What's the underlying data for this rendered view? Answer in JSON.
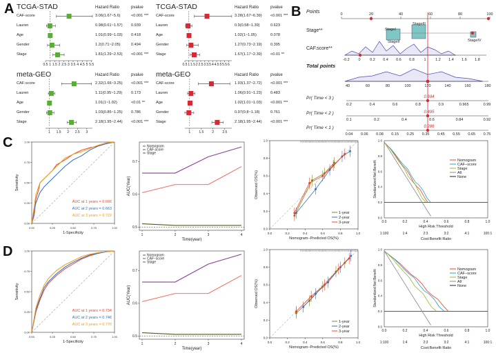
{
  "panel_labels": {
    "a": "A",
    "b": "B",
    "c": "C",
    "d": "D"
  },
  "forest_plots": [
    {
      "title": "TCGA-STAD",
      "col_hr": "Hazard Ratio",
      "col_p": "pvalue",
      "rows": [
        {
          "label": "CAF-score",
          "hr_text": "3.06(1.67~5.6)",
          "p_text": "<0.001 ***",
          "hr": 3.06,
          "lo": 1.67,
          "hi": 5.6
        },
        {
          "label": "Lauren",
          "hr_text": "0.98(0.61~1.57)",
          "p_text": "0.939",
          "hr": 0.98,
          "lo": 0.61,
          "hi": 1.57
        },
        {
          "label": "Age",
          "hr_text": "1.01(0.99~1.03)",
          "p_text": "0.418",
          "hr": 1.01,
          "lo": 0.99,
          "hi": 1.03
        },
        {
          "label": "Gender",
          "hr_text": "1.2(0.71~2.05)",
          "p_text": "0.494",
          "hr": 1.2,
          "lo": 0.71,
          "hi": 2.05
        },
        {
          "label": "Stage",
          "hr_text": "1.81(1.29~2.53)",
          "p_text": "<0.001 ***",
          "hr": 1.81,
          "lo": 1.29,
          "hi": 2.53
        }
      ],
      "ticks": [
        "0.5",
        "1",
        "1.5",
        "2",
        "2.5",
        "3",
        "3.5",
        "4",
        "4.5",
        "5",
        "5.5"
      ],
      "xlim": [
        0.5,
        5.6
      ],
      "color": "#5aab3c"
    },
    {
      "title": "TCGA-STAD",
      "col_hr": "Hazard Ratio",
      "col_p": "pvalue",
      "rows": [
        {
          "label": "CAF-score",
          "hr_text": "3.28(1.67~6.39)",
          "p_text": "<0.001 ***",
          "hr": 3.28,
          "lo": 1.67,
          "hi": 6.39
        },
        {
          "label": "Lauren",
          "hr_text": "0.9(0.58~1.39)",
          "p_text": "0.623",
          "hr": 0.9,
          "lo": 0.58,
          "hi": 1.39
        },
        {
          "label": "Age",
          "hr_text": "1.02(1~1.05)",
          "p_text": "0.078",
          "hr": 1.02,
          "lo": 1.0,
          "hi": 1.05
        },
        {
          "label": "Gender",
          "hr_text": "1.27(0.73~2.19)",
          "p_text": "0.395",
          "hr": 1.27,
          "lo": 0.73,
          "hi": 2.19
        },
        {
          "label": "Stage",
          "hr_text": "1.67(1.17~2.39)",
          "p_text": "<0.01 **",
          "hr": 1.67,
          "lo": 1.17,
          "hi": 2.39
        }
      ],
      "ticks": [
        "0.5",
        "1",
        "1.5",
        "2",
        "2.5",
        "3",
        "3.5",
        "4",
        "4.5",
        "5",
        "5.5",
        "6"
      ],
      "xlim": [
        0.5,
        6.4
      ],
      "color": "#d42a36"
    },
    {
      "title": "meta-GEO",
      "col_hr": "Hazard Ratio",
      "col_p": "pvalue",
      "rows": [
        {
          "label": "CAF-score",
          "hr_text": "2.32(1.66~3.25)",
          "p_text": "<0.001 ***",
          "hr": 2.32,
          "lo": 1.66,
          "hi": 3.25
        },
        {
          "label": "Lauren",
          "hr_text": "1.11(0.95~1.29)",
          "p_text": "0.173",
          "hr": 1.11,
          "lo": 0.95,
          "hi": 1.29
        },
        {
          "label": "Age",
          "hr_text": "1.01(1~1.02)",
          "p_text": "<0.01 **",
          "hr": 1.01,
          "lo": 1.0,
          "hi": 1.02
        },
        {
          "label": "Gender",
          "hr_text": "1.03(0.85~1.25)",
          "p_text": "0.786",
          "hr": 1.03,
          "lo": 0.85,
          "hi": 1.25
        },
        {
          "label": "Stage",
          "hr_text": "2.18(1.95~2.44)",
          "p_text": "<0.001 ***",
          "hr": 2.18,
          "lo": 1.95,
          "hi": 2.44
        }
      ],
      "ticks": [
        "1",
        "1.5",
        "2",
        "2.5",
        "3"
      ],
      "xlim": [
        0.8,
        3.3
      ],
      "color": "#5aab3c"
    },
    {
      "title": "meta-GEO",
      "col_hr": "Hazard Ratio",
      "col_p": "pvalue",
      "rows": [
        {
          "label": "CAF-score",
          "hr_text": "1.93(1.37~2.72)",
          "p_text": "<0.001 ***",
          "hr": 1.93,
          "lo": 1.37,
          "hi": 2.72
        },
        {
          "label": "Lauren",
          "hr_text": "1.06(0.91~1.23)",
          "p_text": "0.483",
          "hr": 1.06,
          "lo": 0.91,
          "hi": 1.23
        },
        {
          "label": "Age",
          "hr_text": "1.02(1.01~1.03)",
          "p_text": "<0.001 ***",
          "hr": 1.02,
          "lo": 1.01,
          "hi": 1.03
        },
        {
          "label": "Gender",
          "hr_text": "0.97(0.8~1.18)",
          "p_text": "0.761",
          "hr": 0.97,
          "lo": 0.8,
          "hi": 1.18
        },
        {
          "label": "Stage",
          "hr_text": "2.18(1.95~2.44)",
          "p_text": "<0.001 ***",
          "hr": 2.18,
          "lo": 1.95,
          "hi": 2.44
        }
      ],
      "ticks": [
        "1",
        "1.5",
        "2",
        "2.5"
      ],
      "xlim": [
        0.8,
        2.8
      ],
      "color": "#d42a36"
    }
  ],
  "nomogram": {
    "rows": [
      {
        "label": "Points",
        "ticks": [
          "0",
          "20",
          "40",
          "60",
          "80",
          "100"
        ]
      },
      {
        "label": "Stage**",
        "ticks": [
          "StageII",
          "StageI",
          "StageIII",
          "StageIV"
        ]
      },
      {
        "label": "CAF.score**",
        "ticks": [
          "-0.2",
          "0",
          "0.2",
          "0.4",
          "0.6",
          "0.8",
          "1",
          "1.2",
          "1.4",
          "1.6",
          "1.8"
        ]
      },
      {
        "label": "Total points",
        "ticks": [
          "40",
          "60",
          "80",
          "100",
          "120",
          "140",
          "160",
          "180"
        ]
      },
      {
        "label": "Pr( Time < 3 )",
        "ticks": [
          "0.2",
          "0.4",
          "0.6",
          "0.8",
          "0.9",
          "0.965",
          "0.99"
        ],
        "value": "0.694"
      },
      {
        "label": "Pr( Time < 2 )",
        "ticks": [
          "0.1",
          "0.2",
          "0.4",
          "0.6",
          "0.84",
          "0.92"
        ],
        "value": "0.495"
      },
      {
        "label": "Pr( Time < 1 )",
        "ticks": [
          "0.04",
          "0.06",
          "0.08",
          "0.15",
          "0.25",
          "0.35",
          "0.45",
          "0.55",
          "0.65",
          "0.75"
        ],
        "value": "0.286"
      }
    ]
  },
  "chart_data": [
    {
      "type": "line",
      "panel": "C-roc",
      "xlabel": "1-Specificity",
      "ylabel": "Sensitivity",
      "xlim": [
        0,
        1
      ],
      "ylim": [
        0,
        1
      ],
      "series": [
        {
          "name": "AUC at 1 years = 0.666",
          "color": "#e8442a",
          "x": [
            0,
            0.03,
            0.05,
            0.08,
            0.1,
            0.15,
            0.2,
            0.25,
            0.3,
            0.4,
            0.5,
            0.6,
            0.7,
            0.8,
            0.9,
            1
          ],
          "y": [
            0,
            0.1,
            0.3,
            0.4,
            0.5,
            0.55,
            0.6,
            0.65,
            0.72,
            0.78,
            0.85,
            0.9,
            0.93,
            0.95,
            0.98,
            1
          ]
        },
        {
          "name": "AUC at 2 years = 0.663",
          "color": "#2a6ec8",
          "x": [
            0,
            0.05,
            0.1,
            0.15,
            0.2,
            0.3,
            0.4,
            0.5,
            0.6,
            0.7,
            0.8,
            0.9,
            1
          ],
          "y": [
            0,
            0.25,
            0.38,
            0.45,
            0.5,
            0.6,
            0.7,
            0.78,
            0.83,
            0.9,
            0.95,
            0.98,
            1
          ]
        },
        {
          "name": "AUC at 3 years = 0.722",
          "color": "#f39c12",
          "x": [
            0,
            0.05,
            0.1,
            0.15,
            0.2,
            0.3,
            0.4,
            0.5,
            0.6,
            0.7,
            0.8,
            0.9,
            1
          ],
          "y": [
            0,
            0.35,
            0.5,
            0.55,
            0.6,
            0.7,
            0.8,
            0.85,
            0.88,
            0.92,
            0.96,
            0.99,
            1
          ]
        }
      ],
      "xticks": [
        "0.00",
        "0.25",
        "0.50",
        "0.75",
        "1.00"
      ],
      "yticks": [
        "0.00",
        "0.25",
        "0.50",
        "0.75",
        "1.00"
      ]
    },
    {
      "type": "line",
      "panel": "C-auc",
      "xlabel": "Time(year)",
      "ylabel": "AUC(Year)",
      "categories": [
        1,
        2,
        3,
        4
      ],
      "ylim": [
        0.49,
        0.76
      ],
      "series": [
        {
          "name": "Nomogram",
          "color": "#8e3c9c",
          "values": [
            0.665,
            0.665,
            0.715,
            0.745
          ]
        },
        {
          "name": "CAF-score",
          "color": "#f07060",
          "values": [
            0.605,
            0.63,
            0.63,
            0.685
          ]
        },
        {
          "name": "Stage",
          "color": "#4a5a1c",
          "values": [
            0.51,
            0.505,
            0.505,
            0.505
          ]
        }
      ],
      "yticks": [
        "0.5",
        "0.6",
        "0.7"
      ],
      "xticks": [
        "1",
        "2",
        "3",
        "4"
      ]
    },
    {
      "type": "line",
      "panel": "C-calibration",
      "xlabel": "Nomogram−Predicted OS(%)",
      "ylabel": "Observed OS(%)",
      "xlim": [
        0,
        1
      ],
      "ylim": [
        0,
        1
      ],
      "series": [
        {
          "name": "1-year",
          "color": "#7a8a1a",
          "x": [
            0.28,
            0.48,
            0.62,
            0.73
          ],
          "y": [
            0.15,
            0.55,
            0.63,
            0.75
          ]
        },
        {
          "name": "2-year",
          "color": "#3a6ec8",
          "x": [
            0.3,
            0.52,
            0.68,
            0.82,
            0.91
          ],
          "y": [
            0.18,
            0.45,
            0.67,
            0.82,
            0.88
          ]
        },
        {
          "name": "3-year",
          "color": "#e8442a",
          "x": [
            0.28,
            0.45,
            0.6,
            0.72,
            0.85
          ],
          "y": [
            0.18,
            0.52,
            0.6,
            0.72,
            0.85
          ]
        }
      ],
      "xticks": [
        "0.0",
        "0.2",
        "0.4",
        "0.6",
        "0.8",
        "1.0"
      ],
      "yticks": [
        "0.0",
        "0.2",
        "0.4",
        "0.6",
        "0.8",
        "1.0"
      ]
    },
    {
      "type": "line",
      "panel": "C-dca",
      "xlabel": "High Risk Threshold",
      "ylabel": "Standardized Net Benefit",
      "x2label": "Cost:Benefit Ratio",
      "series": [
        {
          "name": "Nomogram",
          "color": "#e8442a"
        },
        {
          "name": "CAF−score",
          "color": "#2a9fc8"
        },
        {
          "name": "Stage",
          "color": "#9ab82a"
        },
        {
          "name": "All",
          "color": "#888888"
        },
        {
          "name": "None",
          "color": "#222222"
        }
      ],
      "xticks": [
        "0.0",
        "0.2",
        "0.4",
        "0.6",
        "0.8",
        "1.0"
      ],
      "yticks": [
        "0.0",
        "0.2",
        "0.4",
        "0.6",
        "0.8",
        "1.0"
      ],
      "x2ticks": [
        "1:100",
        "1:4",
        "2:3",
        "3:2",
        "4:1",
        "100:1"
      ]
    },
    {
      "type": "line",
      "panel": "D-roc",
      "xlabel": "1-Specificity",
      "ylabel": "Sensitivity",
      "series": [
        {
          "name": "AUC at 1 years = 0.734",
          "color": "#e8442a"
        },
        {
          "name": "AUC at 2 years = 0.746",
          "color": "#2a6ec8"
        },
        {
          "name": "AUC at 3 years = 0.770",
          "color": "#f39c12"
        }
      ],
      "xticks": [
        "0.00",
        "0.25",
        "0.50",
        "0.75",
        "1.00"
      ],
      "yticks": [
        "0.00",
        "0.25",
        "0.50",
        "0.75",
        "1.00"
      ]
    },
    {
      "type": "line",
      "panel": "D-auc",
      "xlabel": "Time(year)",
      "ylabel": "AUC(Year)",
      "categories": [
        1,
        2,
        3,
        4
      ],
      "ylim": [
        0.49,
        0.76
      ],
      "series": [
        {
          "name": "Nomogram",
          "color": "#8e3c9c",
          "values": [
            0.665,
            0.665,
            0.72,
            0.75
          ]
        },
        {
          "name": "CAF−score",
          "color": "#f07060",
          "values": [
            0.605,
            0.63,
            0.63,
            0.685
          ]
        },
        {
          "name": "Stage",
          "color": "#4a5a1c",
          "values": [
            0.51,
            0.505,
            0.505,
            0.505
          ]
        }
      ],
      "yticks": [
        "0.5",
        "0.6",
        "0.7"
      ],
      "xticks": [
        "1",
        "2",
        "3",
        "4"
      ]
    },
    {
      "type": "line",
      "panel": "D-calibration",
      "xlabel": "Nomogram−Predicted OS(%)",
      "ylabel": "Observed OS(%)",
      "series": [
        {
          "name": "1-year",
          "color": "#7a8a1a"
        },
        {
          "name": "2-year",
          "color": "#3a6ec8"
        },
        {
          "name": "3-year",
          "color": "#e8442a"
        }
      ],
      "xticks": [
        "0.0",
        "0.2",
        "0.4",
        "0.6",
        "0.8",
        "1.0"
      ],
      "yticks": [
        "0.0",
        "0.2",
        "0.4",
        "0.6",
        "0.8",
        "1.0"
      ]
    },
    {
      "type": "line",
      "panel": "D-dca",
      "xlabel": "High Risk Threshold",
      "ylabel": "Standardized Net Benefit",
      "x2label": "Cost:Benefit Ratio",
      "series": [
        {
          "name": "Nomogram",
          "color": "#e8442a"
        },
        {
          "name": "CAF−score",
          "color": "#2a9fc8"
        },
        {
          "name": "Stage",
          "color": "#9ab82a"
        },
        {
          "name": "All",
          "color": "#888888"
        },
        {
          "name": "None",
          "color": "#222222"
        }
      ],
      "xticks": [
        "0.0",
        "0.2",
        "0.4",
        "0.6",
        "0.8",
        "1.0"
      ],
      "yticks": [
        "0.0",
        "0.2",
        "0.4",
        "0.6",
        "0.8",
        "1.0"
      ],
      "x2ticks": [
        "1:100",
        "1:4",
        "2:3",
        "3:2",
        "4:1",
        "100:1"
      ]
    }
  ]
}
